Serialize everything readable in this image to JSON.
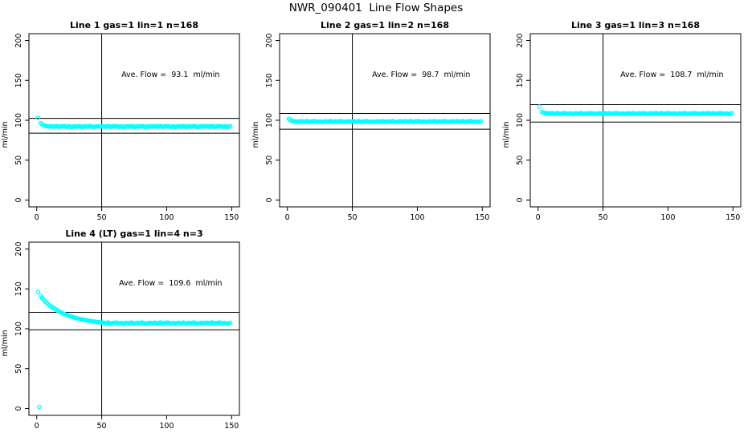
{
  "main_title": "NWR_090401  Line Flow Shapes",
  "colors": {
    "point": "#00FFFF",
    "axis": "#000000",
    "background": "#FFFFFF"
  },
  "chart_data": {
    "type": "scatter",
    "title": "NWR_090401  Line Flow Shapes",
    "layout": {
      "rows": 2,
      "cols": 3,
      "xlim": [
        0,
        150
      ],
      "ylim": [
        0,
        200
      ],
      "x_ticks": [
        0,
        50,
        100,
        150
      ],
      "y_ticks": [
        0,
        50,
        100,
        150,
        200
      ],
      "ylabel": "ml/min",
      "xlabel": "",
      "vline_x": 50,
      "grid": false,
      "point_style": "open-circle"
    },
    "panels": [
      {
        "title": "Line 1 gas=1 lin=1 n=168",
        "ave_flow": 93.1,
        "annotation": "Ave. Flow =  93.1  ml/min",
        "ref_lines": [
          102.4,
          83.8
        ],
        "points": [
          [
            1,
            103
          ],
          [
            3,
            96.5
          ],
          [
            5,
            93.8
          ],
          [
            7,
            92.8
          ],
          [
            9,
            92.3
          ],
          [
            11,
            92.6
          ],
          [
            13,
            91.9
          ],
          [
            15,
            92.8
          ],
          [
            17,
            91.7
          ],
          [
            19,
            92.4
          ],
          [
            21,
            92.7
          ],
          [
            23,
            91.8
          ],
          [
            25,
            92.3
          ],
          [
            27,
            91.6
          ],
          [
            29,
            92.5
          ],
          [
            31,
            92
          ],
          [
            33,
            92.7
          ],
          [
            35,
            91.7
          ],
          [
            37,
            92.4
          ],
          [
            39,
            92.1
          ],
          [
            41,
            92.8
          ],
          [
            43,
            91.8
          ],
          [
            45,
            92
          ],
          [
            47,
            92.5
          ],
          [
            49,
            92.2
          ],
          [
            51,
            92.6
          ],
          [
            53,
            91.9
          ],
          [
            55,
            92.8
          ],
          [
            57,
            91.7
          ],
          [
            59,
            92.4
          ],
          [
            61,
            92.7
          ],
          [
            63,
            91.8
          ],
          [
            65,
            92.3
          ],
          [
            67,
            91.6
          ],
          [
            69,
            92.5
          ],
          [
            71,
            92
          ],
          [
            73,
            92.7
          ],
          [
            75,
            91.7
          ],
          [
            77,
            92.4
          ],
          [
            79,
            92.1
          ],
          [
            81,
            92.8
          ],
          [
            83,
            91.8
          ],
          [
            85,
            92
          ],
          [
            87,
            92.5
          ],
          [
            89,
            92.2
          ],
          [
            91,
            92.6
          ],
          [
            93,
            91.9
          ],
          [
            95,
            92.8
          ],
          [
            97,
            91.7
          ],
          [
            99,
            92.4
          ],
          [
            101,
            92.7
          ],
          [
            103,
            91.8
          ],
          [
            105,
            92.3
          ],
          [
            107,
            91.6
          ],
          [
            109,
            92.5
          ],
          [
            111,
            92
          ],
          [
            113,
            92.7
          ],
          [
            115,
            91.7
          ],
          [
            117,
            92.4
          ],
          [
            119,
            92.1
          ],
          [
            121,
            92.8
          ],
          [
            123,
            91.8
          ],
          [
            125,
            92
          ],
          [
            127,
            92.5
          ],
          [
            129,
            92.2
          ],
          [
            131,
            92.6
          ],
          [
            133,
            91.9
          ],
          [
            135,
            92.8
          ],
          [
            137,
            91.7
          ],
          [
            139,
            92.4
          ],
          [
            141,
            92.7
          ],
          [
            143,
            91.8
          ],
          [
            145,
            92.3
          ],
          [
            147,
            91.6
          ],
          [
            149,
            92.5
          ]
        ]
      },
      {
        "title": "Line 2 gas=1 lin=2 n=168",
        "ave_flow": 98.7,
        "annotation": "Ave. Flow =  98.7  ml/min",
        "ref_lines": [
          108.6,
          88.8
        ],
        "points": [
          [
            1,
            102
          ],
          [
            3,
            99.5
          ],
          [
            5,
            98.6
          ],
          [
            7,
            98.3
          ],
          [
            9,
            98.4
          ],
          [
            11,
            98.8
          ],
          [
            13,
            98.1
          ],
          [
            15,
            99
          ],
          [
            17,
            97.9
          ],
          [
            19,
            98.6
          ],
          [
            21,
            98.9
          ],
          [
            23,
            98
          ],
          [
            25,
            98.5
          ],
          [
            27,
            97.8
          ],
          [
            29,
            98.7
          ],
          [
            31,
            98.2
          ],
          [
            33,
            98.9
          ],
          [
            35,
            97.9
          ],
          [
            37,
            98.6
          ],
          [
            39,
            98.3
          ],
          [
            41,
            99
          ],
          [
            43,
            98
          ],
          [
            45,
            98.2
          ],
          [
            47,
            98.7
          ],
          [
            49,
            98.4
          ],
          [
            51,
            98.8
          ],
          [
            53,
            98.1
          ],
          [
            55,
            99
          ],
          [
            57,
            97.9
          ],
          [
            59,
            98.6
          ],
          [
            61,
            98.9
          ],
          [
            63,
            98
          ],
          [
            65,
            98.5
          ],
          [
            67,
            97.8
          ],
          [
            69,
            98.7
          ],
          [
            71,
            98.2
          ],
          [
            73,
            98.9
          ],
          [
            75,
            97.9
          ],
          [
            77,
            98.6
          ],
          [
            79,
            98.3
          ],
          [
            81,
            99
          ],
          [
            83,
            98
          ],
          [
            85,
            98.2
          ],
          [
            87,
            98.7
          ],
          [
            89,
            98.4
          ],
          [
            91,
            98.8
          ],
          [
            93,
            98.1
          ],
          [
            95,
            99
          ],
          [
            97,
            97.9
          ],
          [
            99,
            98.6
          ],
          [
            101,
            98.9
          ],
          [
            103,
            98
          ],
          [
            105,
            98.5
          ],
          [
            107,
            97.8
          ],
          [
            109,
            98.7
          ],
          [
            111,
            98.2
          ],
          [
            113,
            98.9
          ],
          [
            115,
            97.9
          ],
          [
            117,
            98.6
          ],
          [
            119,
            98.3
          ],
          [
            121,
            99
          ],
          [
            123,
            98
          ],
          [
            125,
            98.2
          ],
          [
            127,
            98.7
          ],
          [
            129,
            98.4
          ],
          [
            131,
            98.8
          ],
          [
            133,
            98.1
          ],
          [
            135,
            99
          ],
          [
            137,
            97.9
          ],
          [
            139,
            98.6
          ],
          [
            141,
            98.9
          ],
          [
            143,
            98
          ],
          [
            145,
            98.5
          ],
          [
            147,
            97.8
          ],
          [
            149,
            98.7
          ]
        ]
      },
      {
        "title": "Line 3 gas=1 lin=3 n=168",
        "ave_flow": 108.7,
        "annotation": "Ave. Flow =  108.7  ml/min",
        "ref_lines": [
          119.6,
          97.8
        ],
        "points": [
          [
            1,
            117
          ],
          [
            3,
            110.5
          ],
          [
            5,
            109.2
          ],
          [
            7,
            108.8
          ],
          [
            9,
            108.6
          ],
          [
            11,
            108.9
          ],
          [
            13,
            108.2
          ],
          [
            15,
            109.1
          ],
          [
            17,
            108
          ],
          [
            19,
            108.7
          ],
          [
            21,
            109
          ],
          [
            23,
            108.1
          ],
          [
            25,
            108.6
          ],
          [
            27,
            107.9
          ],
          [
            29,
            108.8
          ],
          [
            31,
            108.3
          ],
          [
            33,
            109
          ],
          [
            35,
            108
          ],
          [
            37,
            108.7
          ],
          [
            39,
            108.4
          ],
          [
            41,
            109.1
          ],
          [
            43,
            108.1
          ],
          [
            45,
            108.3
          ],
          [
            47,
            108.8
          ],
          [
            49,
            108.5
          ],
          [
            51,
            108.9
          ],
          [
            53,
            108.2
          ],
          [
            55,
            109.1
          ],
          [
            57,
            108
          ],
          [
            59,
            108.7
          ],
          [
            61,
            109
          ],
          [
            63,
            108.1
          ],
          [
            65,
            108.6
          ],
          [
            67,
            107.9
          ],
          [
            69,
            108.8
          ],
          [
            71,
            108.3
          ],
          [
            73,
            109
          ],
          [
            75,
            108
          ],
          [
            77,
            108.7
          ],
          [
            79,
            108.4
          ],
          [
            81,
            109.1
          ],
          [
            83,
            108.1
          ],
          [
            85,
            108.3
          ],
          [
            87,
            108.8
          ],
          [
            89,
            108.5
          ],
          [
            91,
            108.9
          ],
          [
            93,
            108.2
          ],
          [
            95,
            109.1
          ],
          [
            97,
            108
          ],
          [
            99,
            108.7
          ],
          [
            101,
            109
          ],
          [
            103,
            108.1
          ],
          [
            105,
            108.6
          ],
          [
            107,
            107.9
          ],
          [
            109,
            108.8
          ],
          [
            111,
            108.3
          ],
          [
            113,
            109
          ],
          [
            115,
            108
          ],
          [
            117,
            108.7
          ],
          [
            119,
            108.4
          ],
          [
            121,
            109.1
          ],
          [
            123,
            108.1
          ],
          [
            125,
            108.3
          ],
          [
            127,
            108.8
          ],
          [
            129,
            108.5
          ],
          [
            131,
            108.9
          ],
          [
            133,
            108.2
          ],
          [
            135,
            109.1
          ],
          [
            137,
            108
          ],
          [
            139,
            108.7
          ],
          [
            141,
            109
          ],
          [
            143,
            108.1
          ],
          [
            145,
            108.6
          ],
          [
            147,
            107.9
          ],
          [
            149,
            108.8
          ]
        ]
      },
      {
        "title": "Line 4 (LT) gas=1 lin=4 n=3",
        "ave_flow": 109.6,
        "annotation": "Ave. Flow =  109.6  ml/min",
        "ref_lines": [
          120.6,
          98.6
        ],
        "points": [
          [
            1,
            146
          ],
          [
            2,
            2
          ],
          [
            3,
            141
          ],
          [
            5,
            137
          ],
          [
            7,
            133.5
          ],
          [
            9,
            130.5
          ],
          [
            11,
            128
          ],
          [
            13,
            126
          ],
          [
            15,
            124
          ],
          [
            17,
            122
          ],
          [
            19,
            120.3
          ],
          [
            21,
            118.8
          ],
          [
            23,
            117.4
          ],
          [
            25,
            116.2
          ],
          [
            27,
            115.1
          ],
          [
            29,
            114.1
          ],
          [
            31,
            113.2
          ],
          [
            33,
            112.4
          ],
          [
            35,
            111.7
          ],
          [
            37,
            111
          ],
          [
            39,
            110.4
          ],
          [
            41,
            109.8
          ],
          [
            43,
            109.3
          ],
          [
            45,
            108.8
          ],
          [
            47,
            108.4
          ],
          [
            49,
            108
          ],
          [
            51,
            107.6
          ],
          [
            53,
            106.6
          ],
          [
            55,
            107.9
          ],
          [
            57,
            106.3
          ],
          [
            59,
            107.3
          ],
          [
            61,
            107.8
          ],
          [
            63,
            106.4
          ],
          [
            65,
            107.2
          ],
          [
            67,
            106.1
          ],
          [
            69,
            107.5
          ],
          [
            71,
            106.7
          ],
          [
            73,
            107.8
          ],
          [
            75,
            106.3
          ],
          [
            77,
            107.3
          ],
          [
            79,
            106.9
          ],
          [
            81,
            107.9
          ],
          [
            83,
            106.4
          ],
          [
            85,
            106.7
          ],
          [
            87,
            107.5
          ],
          [
            89,
            107
          ],
          [
            91,
            107.6
          ],
          [
            93,
            106.6
          ],
          [
            95,
            107.9
          ],
          [
            97,
            106.3
          ],
          [
            99,
            107.3
          ],
          [
            101,
            107.8
          ],
          [
            103,
            106.4
          ],
          [
            105,
            107.2
          ],
          [
            107,
            106.1
          ],
          [
            109,
            107.5
          ],
          [
            111,
            106.7
          ],
          [
            113,
            107.8
          ],
          [
            115,
            106.3
          ],
          [
            117,
            107.3
          ],
          [
            119,
            106.9
          ],
          [
            121,
            107.9
          ],
          [
            123,
            106.4
          ],
          [
            125,
            106.7
          ],
          [
            127,
            107.5
          ],
          [
            129,
            107
          ],
          [
            131,
            107.6
          ],
          [
            133,
            106.6
          ],
          [
            135,
            107.9
          ],
          [
            137,
            106.3
          ],
          [
            139,
            107.3
          ],
          [
            141,
            107.8
          ],
          [
            143,
            106.4
          ],
          [
            145,
            107.2
          ],
          [
            147,
            106.1
          ],
          [
            149,
            107.5
          ]
        ]
      }
    ]
  }
}
